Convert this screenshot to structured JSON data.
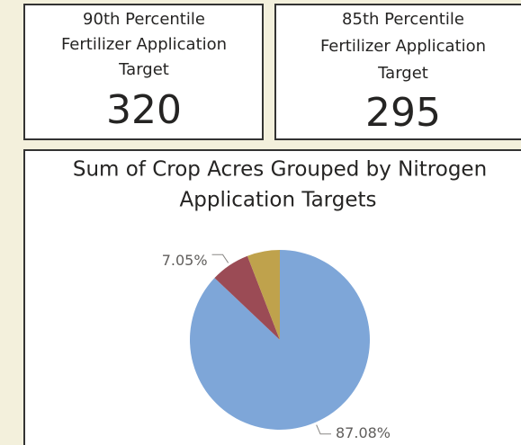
{
  "cards": [
    {
      "title_lines": [
        "90th Percentile",
        "Fertilizer Application",
        "Target"
      ],
      "value": 320
    },
    {
      "title_lines": [
        "85th Percentile",
        "Fertilizer Application",
        "Target"
      ],
      "value": 295
    }
  ],
  "chart_data": {
    "type": "pie",
    "title": [
      "Sum of Crop Acres Grouped by Nitrogen",
      "Application Targets"
    ],
    "values": [
      87.08,
      7.05,
      5.87
    ],
    "value_labels": [
      "87.08%",
      "7.05%",
      null
    ],
    "colors": [
      "#7ea6d8",
      "#9b4b55",
      "#bfa24c"
    ]
  }
}
